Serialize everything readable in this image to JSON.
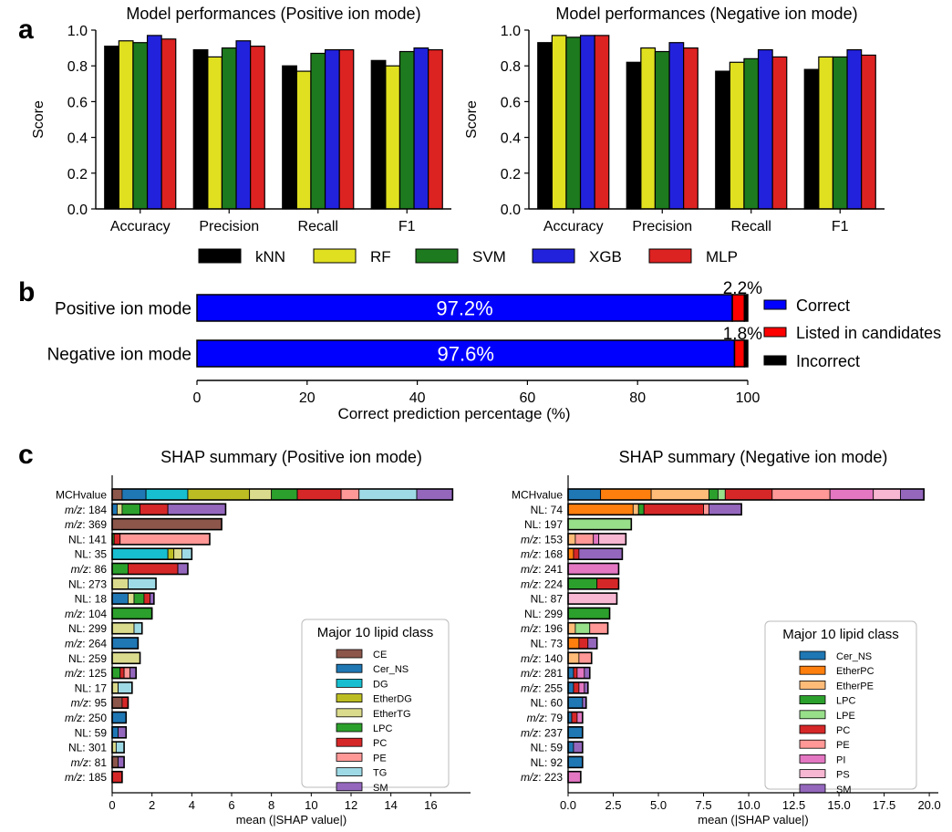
{
  "panel_labels": [
    "a",
    "b",
    "c"
  ],
  "chart_data": [
    {
      "id": "a_pos",
      "type": "bar",
      "title": "Model performances (Positive ion mode)",
      "ylabel": "Score",
      "ylim": [
        0,
        1.0
      ],
      "yticks": [
        "0.0",
        "0.2",
        "0.4",
        "0.6",
        "0.8",
        "1.0"
      ],
      "categories": [
        "Accuracy",
        "Precision",
        "Recall",
        "F1"
      ],
      "series": [
        {
          "name": "kNN",
          "color": "#000000",
          "values": [
            0.91,
            0.89,
            0.8,
            0.83
          ]
        },
        {
          "name": "RF",
          "color": "#e0e020",
          "values": [
            0.94,
            0.85,
            0.77,
            0.8
          ]
        },
        {
          "name": "SVM",
          "color": "#1e7a1e",
          "values": [
            0.93,
            0.9,
            0.87,
            0.88
          ]
        },
        {
          "name": "XGB",
          "color": "#2222dd",
          "values": [
            0.97,
            0.94,
            0.89,
            0.9
          ]
        },
        {
          "name": "MLP",
          "color": "#dd2222",
          "values": [
            0.95,
            0.91,
            0.89,
            0.89
          ]
        }
      ]
    },
    {
      "id": "a_neg",
      "type": "bar",
      "title": "Model performances (Negative ion mode)",
      "ylabel": "Score",
      "ylim": [
        0,
        1.0
      ],
      "yticks": [
        "0.0",
        "0.2",
        "0.4",
        "0.6",
        "0.8",
        "1.0"
      ],
      "categories": [
        "Accuracy",
        "Precision",
        "Recall",
        "F1"
      ],
      "series": [
        {
          "name": "kNN",
          "color": "#000000",
          "values": [
            0.93,
            0.82,
            0.77,
            0.78
          ]
        },
        {
          "name": "RF",
          "color": "#e0e020",
          "values": [
            0.97,
            0.9,
            0.82,
            0.85
          ]
        },
        {
          "name": "SVM",
          "color": "#1e7a1e",
          "values": [
            0.96,
            0.88,
            0.84,
            0.85
          ]
        },
        {
          "name": "XGB",
          "color": "#2222dd",
          "values": [
            0.97,
            0.93,
            0.89,
            0.89
          ]
        },
        {
          "name": "MLP",
          "color": "#dd2222",
          "values": [
            0.97,
            0.9,
            0.85,
            0.86
          ]
        }
      ]
    },
    {
      "id": "b",
      "type": "bar",
      "orientation": "horizontal-stacked",
      "xlabel": "Correct prediction percentage (%)",
      "xlim": [
        0,
        100
      ],
      "xticks": [
        "0",
        "20",
        "40",
        "60",
        "80",
        "100"
      ],
      "categories": [
        "Positive ion mode",
        "Negative ion mode"
      ],
      "series": [
        {
          "name": "Correct",
          "color": "#0000ff",
          "values": [
            97.2,
            97.6
          ],
          "labels": [
            "97.2%",
            "97.6%"
          ]
        },
        {
          "name": "Listed in candidates",
          "color": "#ff0000",
          "values": [
            2.2,
            1.8
          ],
          "labels": [
            "2.2%",
            "1.8%"
          ]
        },
        {
          "name": "Incorrect",
          "color": "#000000",
          "values": [
            0.6,
            0.6
          ]
        }
      ]
    },
    {
      "id": "c_pos",
      "type": "bar",
      "orientation": "horizontal-stacked",
      "title": "SHAP summary (Positive ion mode)",
      "xlabel": "mean (|SHAP value|)",
      "xlim": [
        0,
        18
      ],
      "xticks": [
        "0",
        "2",
        "4",
        "6",
        "8",
        "10",
        "12",
        "14",
        "16"
      ],
      "xtick_values": [
        0,
        2,
        4,
        6,
        8,
        10,
        12,
        14,
        16
      ],
      "legend_title": "Major 10 lipid class",
      "classes": [
        {
          "name": "CE",
          "color": "#8c564b"
        },
        {
          "name": "Cer_NS",
          "color": "#1f77b4"
        },
        {
          "name": "DG",
          "color": "#17becf"
        },
        {
          "name": "EtherDG",
          "color": "#bcbd22"
        },
        {
          "name": "EtherTG",
          "color": "#dbdb8d"
        },
        {
          "name": "LPC",
          "color": "#2ca02c"
        },
        {
          "name": "PC",
          "color": "#d62728"
        },
        {
          "name": "PE",
          "color": "#ff9896"
        },
        {
          "name": "TG",
          "color": "#9edae5"
        },
        {
          "name": "SM",
          "color": "#9467bd"
        }
      ],
      "features": [
        {
          "pre": "",
          "label": "MCHvalue",
          "segments": [
            [
              "CE",
              0.5
            ],
            [
              "Cer_NS",
              1.2
            ],
            [
              "DG",
              2.1
            ],
            [
              "EtherDG",
              3.1
            ],
            [
              "EtherTG",
              1.1
            ],
            [
              "LPC",
              1.3
            ],
            [
              "PC",
              2.2
            ],
            [
              "PE",
              0.9
            ],
            [
              "TG",
              2.9
            ],
            [
              "SM",
              1.8
            ]
          ]
        },
        {
          "pre": "m/z",
          "label": ": 184",
          "segments": [
            [
              "Cer_NS",
              0.25
            ],
            [
              "EtherTG",
              0.25
            ],
            [
              "LPC",
              0.9
            ],
            [
              "PC",
              1.4
            ],
            [
              "SM",
              2.9
            ]
          ]
        },
        {
          "pre": "m/z",
          "label": ": 369",
          "segments": [
            [
              "CE",
              5.5
            ]
          ]
        },
        {
          "pre": "",
          "label": "NL: 141",
          "segments": [
            [
              "LPC",
              0.1
            ],
            [
              "PC",
              0.3
            ],
            [
              "PE",
              4.5
            ]
          ]
        },
        {
          "pre": "",
          "label": "NL: 35",
          "segments": [
            [
              "DG",
              2.8
            ],
            [
              "EtherDG",
              0.3
            ],
            [
              "EtherTG",
              0.4
            ],
            [
              "TG",
              0.5
            ]
          ]
        },
        {
          "pre": "m/z",
          "label": ": 86",
          "segments": [
            [
              "LPC",
              0.8
            ],
            [
              "PC",
              2.5
            ],
            [
              "SM",
              0.5
            ]
          ]
        },
        {
          "pre": "",
          "label": "NL: 273",
          "segments": [
            [
              "EtherTG",
              0.8
            ],
            [
              "TG",
              1.4
            ]
          ]
        },
        {
          "pre": "",
          "label": "NL: 18",
          "segments": [
            [
              "Cer_NS",
              0.8
            ],
            [
              "EtherTG",
              0.3
            ],
            [
              "LPC",
              0.5
            ],
            [
              "PC",
              0.3
            ],
            [
              "SM",
              0.2
            ]
          ]
        },
        {
          "pre": "m/z",
          "label": ": 104",
          "segments": [
            [
              "LPC",
              2.0
            ]
          ]
        },
        {
          "pre": "",
          "label": "NL: 299",
          "segments": [
            [
              "EtherTG",
              1.1
            ],
            [
              "TG",
              0.4
            ]
          ]
        },
        {
          "pre": "m/z",
          "label": ": 264",
          "segments": [
            [
              "Cer_NS",
              1.3
            ]
          ]
        },
        {
          "pre": "",
          "label": "NL: 259",
          "segments": [
            [
              "EtherTG",
              1.4
            ]
          ]
        },
        {
          "pre": "m/z",
          "label": ": 125",
          "segments": [
            [
              "LPC",
              0.4
            ],
            [
              "PC",
              0.2
            ],
            [
              "PE",
              0.3
            ],
            [
              "SM",
              0.3
            ]
          ]
        },
        {
          "pre": "",
          "label": "NL: 17",
          "segments": [
            [
              "EtherTG",
              0.3
            ],
            [
              "TG",
              0.7
            ]
          ]
        },
        {
          "pre": "m/z",
          "label": ": 95",
          "segments": [
            [
              "CE",
              0.5
            ],
            [
              "PC",
              0.3
            ]
          ]
        },
        {
          "pre": "m/z",
          "label": ": 250",
          "segments": [
            [
              "Cer_NS",
              0.7
            ]
          ]
        },
        {
          "pre": "",
          "label": "NL: 59",
          "segments": [
            [
              "Cer_NS",
              0.3
            ],
            [
              "SM",
              0.4
            ]
          ]
        },
        {
          "pre": "",
          "label": "NL: 301",
          "segments": [
            [
              "EtherTG",
              0.2
            ],
            [
              "TG",
              0.4
            ]
          ]
        },
        {
          "pre": "m/z",
          "label": ": 81",
          "segments": [
            [
              "CE",
              0.3
            ],
            [
              "SM",
              0.3
            ]
          ]
        },
        {
          "pre": "m/z",
          "label": ": 185",
          "segments": [
            [
              "PC",
              0.5
            ]
          ]
        }
      ]
    },
    {
      "id": "c_neg",
      "type": "bar",
      "orientation": "horizontal-stacked",
      "title": "SHAP summary (Negative ion mode)",
      "xlabel": "mean (|SHAP value|)",
      "xlim": [
        0,
        20.5
      ],
      "xticks": [
        "0.0",
        "2.5",
        "5.0",
        "7.5",
        "10.0",
        "12.5",
        "15.0",
        "17.5",
        "20.0"
      ],
      "xtick_values": [
        0,
        2.5,
        5,
        7.5,
        10,
        12.5,
        15,
        17.5,
        20
      ],
      "legend_title": "Major 10 lipid class",
      "classes": [
        {
          "name": "Cer_NS",
          "color": "#1f77b4"
        },
        {
          "name": "EtherPC",
          "color": "#ff7f0e"
        },
        {
          "name": "EtherPE",
          "color": "#ffbb78"
        },
        {
          "name": "LPC",
          "color": "#2ca02c"
        },
        {
          "name": "LPE",
          "color": "#98df8a"
        },
        {
          "name": "PC",
          "color": "#d62728"
        },
        {
          "name": "PE",
          "color": "#ff9896"
        },
        {
          "name": "PI",
          "color": "#e377c2"
        },
        {
          "name": "PS",
          "color": "#f7b6d2"
        },
        {
          "name": "SM",
          "color": "#9467bd"
        }
      ],
      "features": [
        {
          "pre": "",
          "label": "MCHvalue",
          "segments": [
            [
              "Cer_NS",
              1.8
            ],
            [
              "EtherPC",
              2.8
            ],
            [
              "EtherPE",
              3.2
            ],
            [
              "LPC",
              0.5
            ],
            [
              "LPE",
              0.4
            ],
            [
              "PC",
              2.6
            ],
            [
              "PE",
              3.2
            ],
            [
              "PI",
              2.4
            ],
            [
              "PS",
              1.5
            ],
            [
              "SM",
              1.3
            ]
          ]
        },
        {
          "pre": "",
          "label": "NL: 74",
          "segments": [
            [
              "EtherPC",
              3.6
            ],
            [
              "EtherPE",
              0.3
            ],
            [
              "LPC",
              0.3
            ],
            [
              "PC",
              3.3
            ],
            [
              "PE",
              0.3
            ],
            [
              "SM",
              1.8
            ]
          ]
        },
        {
          "pre": "",
          "label": "NL: 197",
          "segments": [
            [
              "LPE",
              3.5
            ]
          ]
        },
        {
          "pre": "m/z",
          "label": ": 153",
          "segments": [
            [
              "EtherPE",
              0.4
            ],
            [
              "PE",
              1.0
            ],
            [
              "PI",
              0.3
            ],
            [
              "PS",
              1.5
            ]
          ]
        },
        {
          "pre": "m/z",
          "label": ": 168",
          "segments": [
            [
              "EtherPC",
              0.3
            ],
            [
              "PC",
              0.3
            ],
            [
              "SM",
              2.4
            ]
          ]
        },
        {
          "pre": "m/z",
          "label": ": 241",
          "segments": [
            [
              "PI",
              2.8
            ]
          ]
        },
        {
          "pre": "m/z",
          "label": ": 224",
          "segments": [
            [
              "LPC",
              1.6
            ],
            [
              "PC",
              1.2
            ]
          ]
        },
        {
          "pre": "",
          "label": "NL: 87",
          "segments": [
            [
              "PS",
              2.7
            ]
          ]
        },
        {
          "pre": "",
          "label": "NL: 299",
          "segments": [
            [
              "LPC",
              2.3
            ]
          ]
        },
        {
          "pre": "m/z",
          "label": ": 196",
          "segments": [
            [
              "EtherPE",
              0.4
            ],
            [
              "LPE",
              0.8
            ],
            [
              "PE",
              1.0
            ]
          ]
        },
        {
          "pre": "",
          "label": "NL: 73",
          "segments": [
            [
              "EtherPC",
              0.6
            ],
            [
              "PC",
              0.5
            ],
            [
              "SM",
              0.5
            ]
          ]
        },
        {
          "pre": "m/z",
          "label": ": 140",
          "segments": [
            [
              "EtherPE",
              0.6
            ],
            [
              "PE",
              0.7
            ]
          ]
        },
        {
          "pre": "m/z",
          "label": ": 281",
          "segments": [
            [
              "Cer_NS",
              0.3
            ],
            [
              "PC",
              0.2
            ],
            [
              "PI",
              0.4
            ],
            [
              "SM",
              0.3
            ]
          ]
        },
        {
          "pre": "m/z",
          "label": ": 255",
          "segments": [
            [
              "Cer_NS",
              0.3
            ],
            [
              "PC",
              0.3
            ],
            [
              "PI",
              0.3
            ],
            [
              "SM",
              0.2
            ]
          ]
        },
        {
          "pre": "",
          "label": "NL: 60",
          "segments": [
            [
              "Cer_NS",
              0.8
            ],
            [
              "SM",
              0.2
            ]
          ]
        },
        {
          "pre": "m/z",
          "label": ": 79",
          "segments": [
            [
              "Cer_NS",
              0.2
            ],
            [
              "PC",
              0.3
            ],
            [
              "PI",
              0.3
            ]
          ]
        },
        {
          "pre": "m/z",
          "label": ": 237",
          "segments": [
            [
              "Cer_NS",
              0.8
            ]
          ]
        },
        {
          "pre": "",
          "label": "NL: 59",
          "segments": [
            [
              "Cer_NS",
              0.3
            ],
            [
              "SM",
              0.5
            ]
          ]
        },
        {
          "pre": "",
          "label": "NL: 92",
          "segments": [
            [
              "Cer_NS",
              0.8
            ]
          ]
        },
        {
          "pre": "m/z",
          "label": ": 223",
          "segments": [
            [
              "PI",
              0.7
            ]
          ]
        }
      ]
    }
  ]
}
